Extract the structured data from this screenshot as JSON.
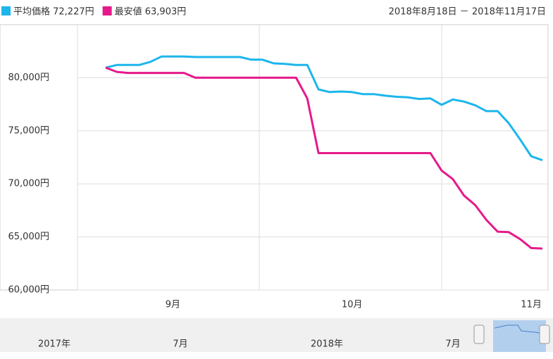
{
  "chart_data": {
    "type": "line",
    "date_range": "2018年8月18日 － 2018年11月17日",
    "categories": [
      null,
      null,
      null,
      null,
      null,
      null,
      "9月",
      null,
      null,
      null,
      null,
      null,
      null,
      null,
      null,
      null,
      null,
      null,
      null,
      null,
      null,
      null,
      "10月",
      null,
      null,
      null,
      null,
      null,
      null,
      null,
      null,
      null,
      null,
      null,
      null,
      null,
      null,
      null,
      "11月",
      null
    ],
    "series": [
      {
        "name": "平均価格 72,227円",
        "color": "#1cb6ec",
        "values": [
          80950,
          81200,
          81200,
          81200,
          81500,
          82000,
          82000,
          82000,
          81950,
          81950,
          81950,
          81950,
          81950,
          81700,
          81700,
          81350,
          81300,
          81200,
          81200,
          78900,
          78650,
          78700,
          78650,
          78450,
          78450,
          78300,
          78200,
          78150,
          78000,
          78050,
          77450,
          77950,
          77750,
          77400,
          76850,
          76850,
          75700,
          74200,
          72600,
          72227
        ]
      },
      {
        "name": "最安値 63,903円",
        "color": "#e6198a",
        "values": [
          80950,
          80550,
          80450,
          80450,
          80450,
          80450,
          80450,
          80450,
          80000,
          80000,
          80000,
          80000,
          80000,
          80000,
          80000,
          80000,
          80000,
          80000,
          78050,
          72900,
          72900,
          72900,
          72900,
          72900,
          72900,
          72900,
          72900,
          72900,
          72900,
          72900,
          71250,
          70450,
          68900,
          68000,
          66600,
          65500,
          65450,
          64800,
          63950,
          63903
        ]
      }
    ],
    "ylim": [
      60000,
      85000
    ],
    "yticks": [
      {
        "value": 60000,
        "label": "60,000円"
      },
      {
        "value": 65000,
        "label": "65,000円"
      },
      {
        "value": 70000,
        "label": "70,000円"
      },
      {
        "value": 75000,
        "label": "75,000円"
      },
      {
        "value": 80000,
        "label": "80,000円"
      }
    ],
    "grid": true,
    "navigator": {
      "labels": [
        "2017年",
        "7月",
        "2018年",
        "7月"
      ]
    }
  }
}
